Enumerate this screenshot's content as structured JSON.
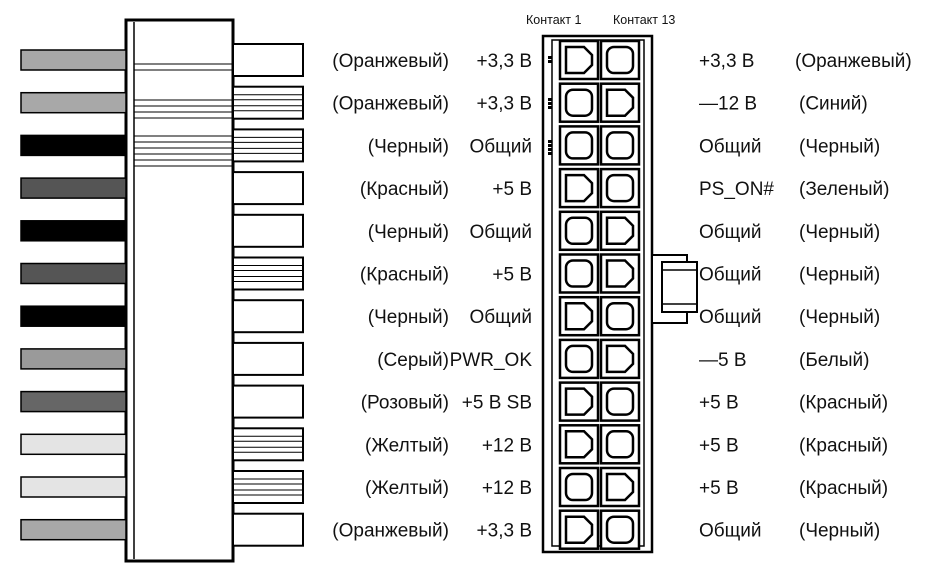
{
  "header": {
    "contact_1": "Контакт 1",
    "contact_13": "Контакт  13"
  },
  "wire_colors": {
    "Оранжевый": "#a8a8a8",
    "Синий": "#a8a8a8",
    "Черный": "#000000",
    "Красный": "#555555",
    "Серый": "#9a9a9a",
    "Розовый": "#666666",
    "Желтый": "#e4e4e4",
    "Белый": "#e4e4e4",
    "Зеленый": "#666666"
  },
  "left_pins": [
    {
      "color": "(Оранжевый)",
      "signal": "+3,3 В",
      "wire": "Оранжевый"
    },
    {
      "color": "(Оранжевый)",
      "signal": "+3,3 В",
      "wire": "Оранжевый"
    },
    {
      "color": "(Черный)",
      "signal": "Общий",
      "wire": "Черный"
    },
    {
      "color": "(Красный)",
      "signal": "+5 В",
      "wire": "Красный"
    },
    {
      "color": "(Черный)",
      "signal": "Общий",
      "wire": "Черный"
    },
    {
      "color": "(Красный)",
      "signal": "+5 В",
      "wire": "Красный"
    },
    {
      "color": "(Черный)",
      "signal": "Общий",
      "wire": "Черный"
    },
    {
      "color": "(Серый)",
      "signal": "PWR_OK",
      "wire": "Серый"
    },
    {
      "color": "(Розовый)",
      "signal": "+5 В SB",
      "wire": "Розовый"
    },
    {
      "color": "(Желтый)",
      "signal": "+12 В",
      "wire": "Желтый"
    },
    {
      "color": "(Желтый)",
      "signal": "+12 В",
      "wire": "Желтый"
    },
    {
      "color": "(Оранжевый)",
      "signal": "+3,3 В",
      "wire": "Оранжевый"
    }
  ],
  "right_pins": [
    {
      "signal": "+3,3 В",
      "color": "(Оранжевый)"
    },
    {
      "signal": "—12 В",
      "color": "(Синий)"
    },
    {
      "signal": "Общий",
      "color": "(Черный)"
    },
    {
      "signal": "PS_ON#",
      "color": "(Зеленый)"
    },
    {
      "signal": "Общий",
      "color": "(Черный)"
    },
    {
      "signal": "Общий",
      "color": "(Черный)"
    },
    {
      "signal": "Общий",
      "color": "(Черный)"
    },
    {
      "signal": "—5 В",
      "color": "(Белый)"
    },
    {
      "signal": "+5 В",
      "color": "(Красный)"
    },
    {
      "signal": "+5 В",
      "color": "(Красный)"
    },
    {
      "signal": "+5 В",
      "color": "(Красный)"
    },
    {
      "signal": "Общий",
      "color": "(Черный)"
    }
  ]
}
